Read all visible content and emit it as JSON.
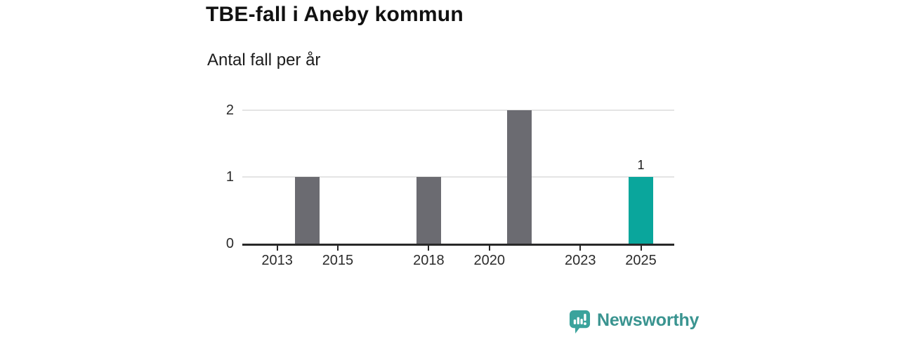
{
  "header": {
    "title": "TBE-fall i Aneby kommun",
    "subtitle": "Antal fall per år"
  },
  "chart_data": {
    "type": "bar",
    "title": "TBE-fall i Aneby kommun",
    "subtitle": "Antal fall per år",
    "ylabel": "",
    "xlabel": "",
    "bars": [
      {
        "year": 2014,
        "value": 1,
        "color": "default"
      },
      {
        "year": 2018,
        "value": 1,
        "color": "default"
      },
      {
        "year": 2021,
        "value": 2,
        "color": "default"
      },
      {
        "year": 2025,
        "value": 1,
        "color": "highlight"
      }
    ],
    "colors": {
      "default": "#6b6b71",
      "highlight": "#0aa69c"
    },
    "x_ticks": [
      2013,
      2015,
      2018,
      2020,
      2023,
      2025
    ],
    "y_ticks": [
      0,
      1,
      2
    ],
    "xlim": [
      2011.85,
      2026.1
    ],
    "ylim": [
      0,
      2
    ],
    "grid": "horizontal-light",
    "legend": "none",
    "data_labels": [
      {
        "year": 2025,
        "value": 1
      }
    ]
  },
  "footer": {
    "brand": "Newsworthy",
    "logo_icon": "bar-chart-speech-bubble-icon",
    "brand_color": "#3a9490",
    "icon_color": "#3aa39c"
  }
}
